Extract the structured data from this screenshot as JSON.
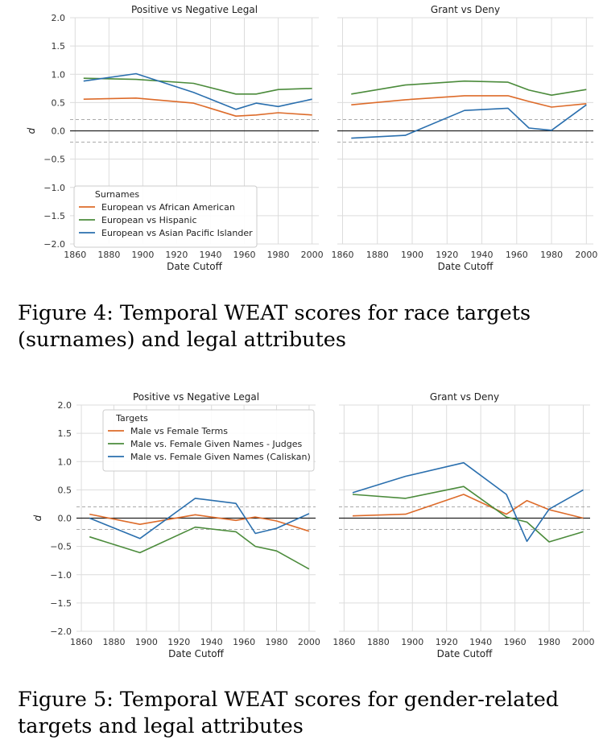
{
  "chart_data": [
    {
      "type": "line",
      "title": "Positive vs Negative Legal",
      "xlabel": "Date Cutoff",
      "ylabel": "d",
      "xlim": [
        1857,
        2004
      ],
      "ylim": [
        -2.0,
        2.0
      ],
      "xticks": [
        "1860",
        "1880",
        "1900",
        "1920",
        "1940",
        "1960",
        "1980",
        "2000"
      ],
      "yticks": [
        "2.0",
        "1.5",
        "1.0",
        "0.5",
        "0.0",
        "−0.5",
        "−1.0",
        "−1.5",
        "−2.0"
      ],
      "grid": true,
      "reference_lines": {
        "zero": 0.0,
        "dashed": [
          0.2,
          -0.2
        ]
      },
      "legend": {
        "title": "Surnames",
        "placement": "lower-left"
      },
      "series": [
        {
          "name": "European vs African American",
          "color": "#dd6b2a",
          "x": [
            1865,
            1896,
            1930,
            1955,
            1967,
            1980,
            2000
          ],
          "y": [
            0.56,
            0.58,
            0.49,
            0.26,
            0.28,
            0.32,
            0.28
          ]
        },
        {
          "name": "European vs Hispanic",
          "color": "#4b8b3b",
          "x": [
            1865,
            1896,
            1930,
            1955,
            1967,
            1980,
            2000
          ],
          "y": [
            0.93,
            0.91,
            0.84,
            0.65,
            0.65,
            0.73,
            0.75
          ]
        },
        {
          "name": "European vs Asian Pacific Islander",
          "color": "#2a6fae",
          "x": [
            1865,
            1896,
            1930,
            1955,
            1967,
            1980,
            2000
          ],
          "y": [
            0.88,
            1.01,
            0.68,
            0.38,
            0.49,
            0.43,
            0.56
          ]
        }
      ]
    },
    {
      "type": "line",
      "title": "Grant vs Deny",
      "xlabel": "Date Cutoff",
      "ylabel": "",
      "xlim": [
        1857,
        2004
      ],
      "ylim": [
        -2.0,
        2.0
      ],
      "xticks": [
        "1860",
        "1880",
        "1900",
        "1920",
        "1940",
        "1960",
        "1980",
        "2000"
      ],
      "grid": true,
      "reference_lines": {
        "zero": 0.0,
        "dashed": [
          0.2,
          -0.2
        ]
      },
      "series": [
        {
          "name": "European vs African American",
          "color": "#dd6b2a",
          "x": [
            1865,
            1896,
            1930,
            1955,
            1967,
            1980,
            2000
          ],
          "y": [
            0.46,
            0.55,
            0.62,
            0.62,
            0.52,
            0.42,
            0.48
          ]
        },
        {
          "name": "European vs Hispanic",
          "color": "#4b8b3b",
          "x": [
            1865,
            1896,
            1930,
            1955,
            1967,
            1980,
            2000
          ],
          "y": [
            0.65,
            0.81,
            0.88,
            0.86,
            0.72,
            0.63,
            0.73
          ]
        },
        {
          "name": "European vs Asian Pacific Islander",
          "color": "#2a6fae",
          "x": [
            1865,
            1896,
            1930,
            1955,
            1967,
            1980,
            2000
          ],
          "y": [
            -0.13,
            -0.08,
            0.36,
            0.4,
            0.05,
            0.01,
            0.46
          ]
        }
      ]
    },
    {
      "type": "line",
      "title": "Positive vs Negative Legal",
      "xlabel": "Date Cutoff",
      "ylabel": "d",
      "xlim": [
        1857,
        2004
      ],
      "ylim": [
        -2.0,
        2.0
      ],
      "xticks": [
        "1860",
        "1880",
        "1900",
        "1920",
        "1940",
        "1960",
        "1980",
        "2000"
      ],
      "yticks": [
        "2.0",
        "1.5",
        "1.0",
        "0.5",
        "0.0",
        "−0.5",
        "−1.0",
        "−1.5",
        "−2.0"
      ],
      "grid": true,
      "reference_lines": {
        "zero": 0.0,
        "dashed": [
          0.2,
          -0.2
        ]
      },
      "legend": {
        "title": "Targets",
        "placement": "upper-center"
      },
      "series": [
        {
          "name": "Male vs Female Terms",
          "color": "#dd6b2a",
          "x": [
            1865,
            1896,
            1930,
            1955,
            1967,
            1980,
            2000
          ],
          "y": [
            0.07,
            -0.11,
            0.06,
            -0.04,
            0.02,
            -0.05,
            -0.23
          ]
        },
        {
          "name": "Male vs. Female Given Names - Judges",
          "color": "#4b8b3b",
          "x": [
            1865,
            1896,
            1930,
            1955,
            1967,
            1980,
            2000
          ],
          "y": [
            -0.33,
            -0.61,
            -0.16,
            -0.24,
            -0.5,
            -0.58,
            -0.9
          ]
        },
        {
          "name": "Male vs. Female Given Names (Caliskan)",
          "color": "#2a6fae",
          "x": [
            1865,
            1896,
            1930,
            1955,
            1967,
            1980,
            2000
          ],
          "y": [
            0.0,
            -0.36,
            0.35,
            0.26,
            -0.27,
            -0.18,
            0.08
          ]
        }
      ]
    },
    {
      "type": "line",
      "title": "Grant vs Deny",
      "xlabel": "Date Cutoff",
      "ylabel": "",
      "xlim": [
        1857,
        2004
      ],
      "ylim": [
        -2.0,
        2.0
      ],
      "xticks": [
        "1860",
        "1880",
        "1900",
        "1920",
        "1940",
        "1960",
        "1980",
        "2000"
      ],
      "grid": true,
      "reference_lines": {
        "zero": 0.0,
        "dashed": [
          0.2,
          -0.2
        ]
      },
      "series": [
        {
          "name": "Male vs Female Terms",
          "color": "#dd6b2a",
          "x": [
            1865,
            1896,
            1930,
            1955,
            1967,
            1980,
            2000
          ],
          "y": [
            0.04,
            0.07,
            0.42,
            0.07,
            0.31,
            0.15,
            0.0
          ]
        },
        {
          "name": "Male vs. Female Given Names - Judges",
          "color": "#4b8b3b",
          "x": [
            1865,
            1896,
            1930,
            1955,
            1967,
            1980,
            2000
          ],
          "y": [
            0.42,
            0.35,
            0.56,
            0.02,
            -0.07,
            -0.42,
            -0.24
          ]
        },
        {
          "name": "Male vs. Female Given Names (Caliskan)",
          "color": "#2a6fae",
          "x": [
            1865,
            1896,
            1930,
            1955,
            1967,
            1980,
            2000
          ],
          "y": [
            0.45,
            0.74,
            0.98,
            0.42,
            -0.41,
            0.16,
            0.5
          ]
        }
      ]
    }
  ],
  "captions": {
    "figure4": "Figure 4: Temporal WEAT scores for race targets (surnames) and legal attributes",
    "figure5": "Figure 5: Temporal WEAT scores for gender-related targets and legal attributes"
  }
}
